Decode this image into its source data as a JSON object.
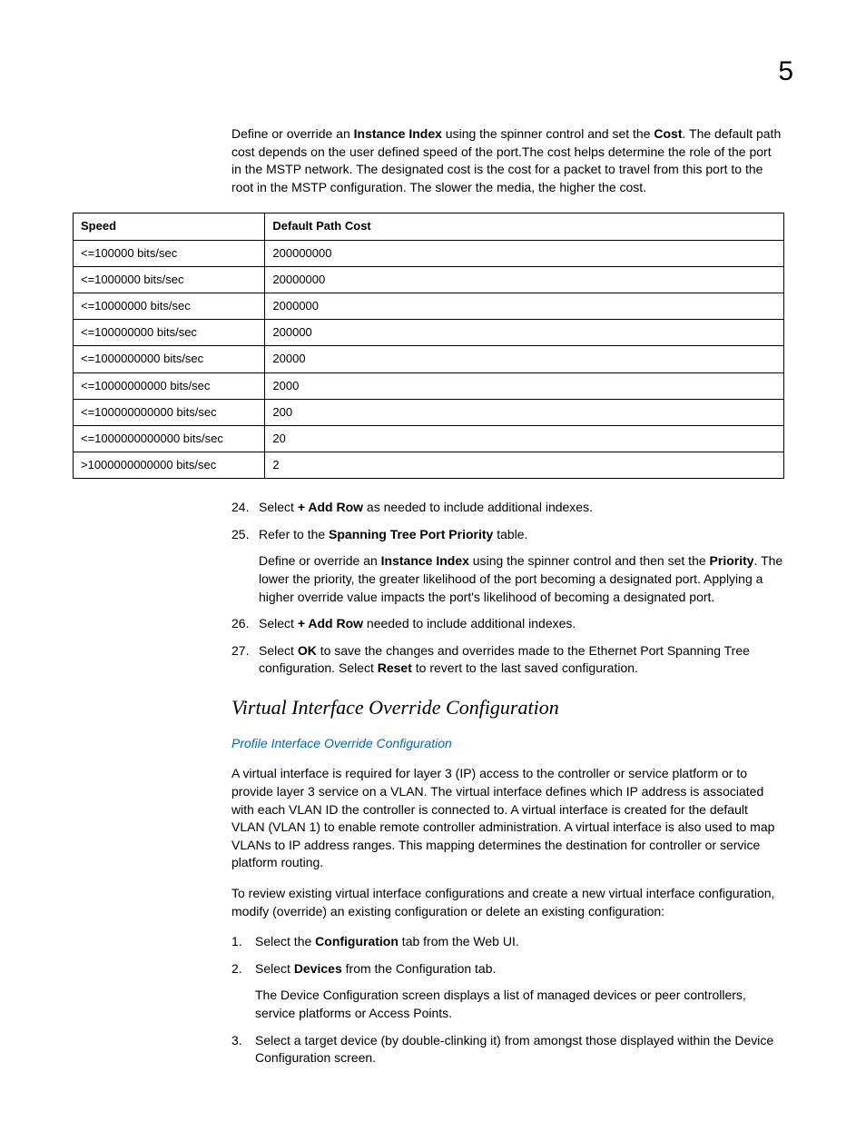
{
  "page_number": "5",
  "intro": {
    "pre1": "Define or override an ",
    "b1": "Instance Index",
    "mid1": " using the spinner control and set the ",
    "b2": "Cost",
    "post1": ". The default path cost depends on the user defined speed of the port.The cost helps determine the role of the port in the MSTP network. The designated cost is the cost for a packet to travel from this port to the root in the MSTP configuration. The slower the media, the higher the cost."
  },
  "table": {
    "headers": {
      "speed": "Speed",
      "cost": "Default Path Cost"
    },
    "rows": [
      {
        "speed": "<=100000 bits/sec",
        "cost": "200000000"
      },
      {
        "speed": "<=1000000 bits/sec",
        "cost": "20000000"
      },
      {
        "speed": "<=10000000 bits/sec",
        "cost": "2000000"
      },
      {
        "speed": "<=100000000 bits/sec",
        "cost": "200000"
      },
      {
        "speed": "<=1000000000 bits/sec",
        "cost": "20000"
      },
      {
        "speed": "<=10000000000 bits/sec",
        "cost": "2000"
      },
      {
        "speed": "<=100000000000 bits/sec",
        "cost": "200"
      },
      {
        "speed": "<=1000000000000 bits/sec",
        "cost": "20"
      },
      {
        "speed": ">1000000000000 bits/sec",
        "cost": "2"
      }
    ]
  },
  "steps": {
    "s24": {
      "num": "24.",
      "pre": "Select ",
      "b": "+ Add Row",
      "post": " as needed to include additional indexes."
    },
    "s25": {
      "num": "25.",
      "pre": "Refer to the ",
      "b": "Spanning Tree Port Priority",
      "post": " table.",
      "sub_pre": "Define or override an ",
      "sub_b1": "Instance Index",
      "sub_mid": " using the spinner control and then set the ",
      "sub_b2": "Priority",
      "sub_post": ". The lower the priority, the greater likelihood of the port becoming a designated port. Applying a higher override value impacts the port's likelihood of becoming a designated port."
    },
    "s26": {
      "num": "26.",
      "pre": "Select ",
      "b": "+ Add Row",
      "post": " needed to include additional indexes."
    },
    "s27": {
      "num": "27.",
      "pre": "Select ",
      "b1": "OK",
      "mid": " to save the changes and overrides made to the Ethernet Port Spanning Tree configuration. Select ",
      "b2": "Reset",
      "post": " to revert to the last saved configuration."
    }
  },
  "section_heading": "Virtual Interface Override Configuration",
  "link": "Profile Interface Override Configuration",
  "para1": "A virtual interface is required for layer 3 (IP) access to the controller or service platform or to provide layer 3 service on a VLAN. The virtual interface defines which IP address is associated with each VLAN ID the controller is connected to. A virtual interface is created for the default VLAN (VLAN 1) to enable remote controller administration. A virtual interface is also used to map VLANs to IP address ranges. This mapping determines the destination for controller or service platform routing.",
  "para2": "To review existing virtual interface configurations and create a new virtual interface configuration, modify (override) an existing configuration or delete an existing configuration:",
  "steps2": {
    "s1": {
      "num": "1.",
      "pre": "Select the ",
      "b": "Configuration",
      "post": " tab from the Web UI."
    },
    "s2": {
      "num": "2.",
      "pre": "Select ",
      "b": "Devices",
      "post": " from the Configuration tab.",
      "sub": "The Device Configuration screen displays a list of managed devices or peer controllers, service platforms or Access Points."
    },
    "s3": {
      "num": "3.",
      "text": "Select a target device (by double-clinking it) from amongst those displayed within the Device Configuration screen."
    }
  }
}
